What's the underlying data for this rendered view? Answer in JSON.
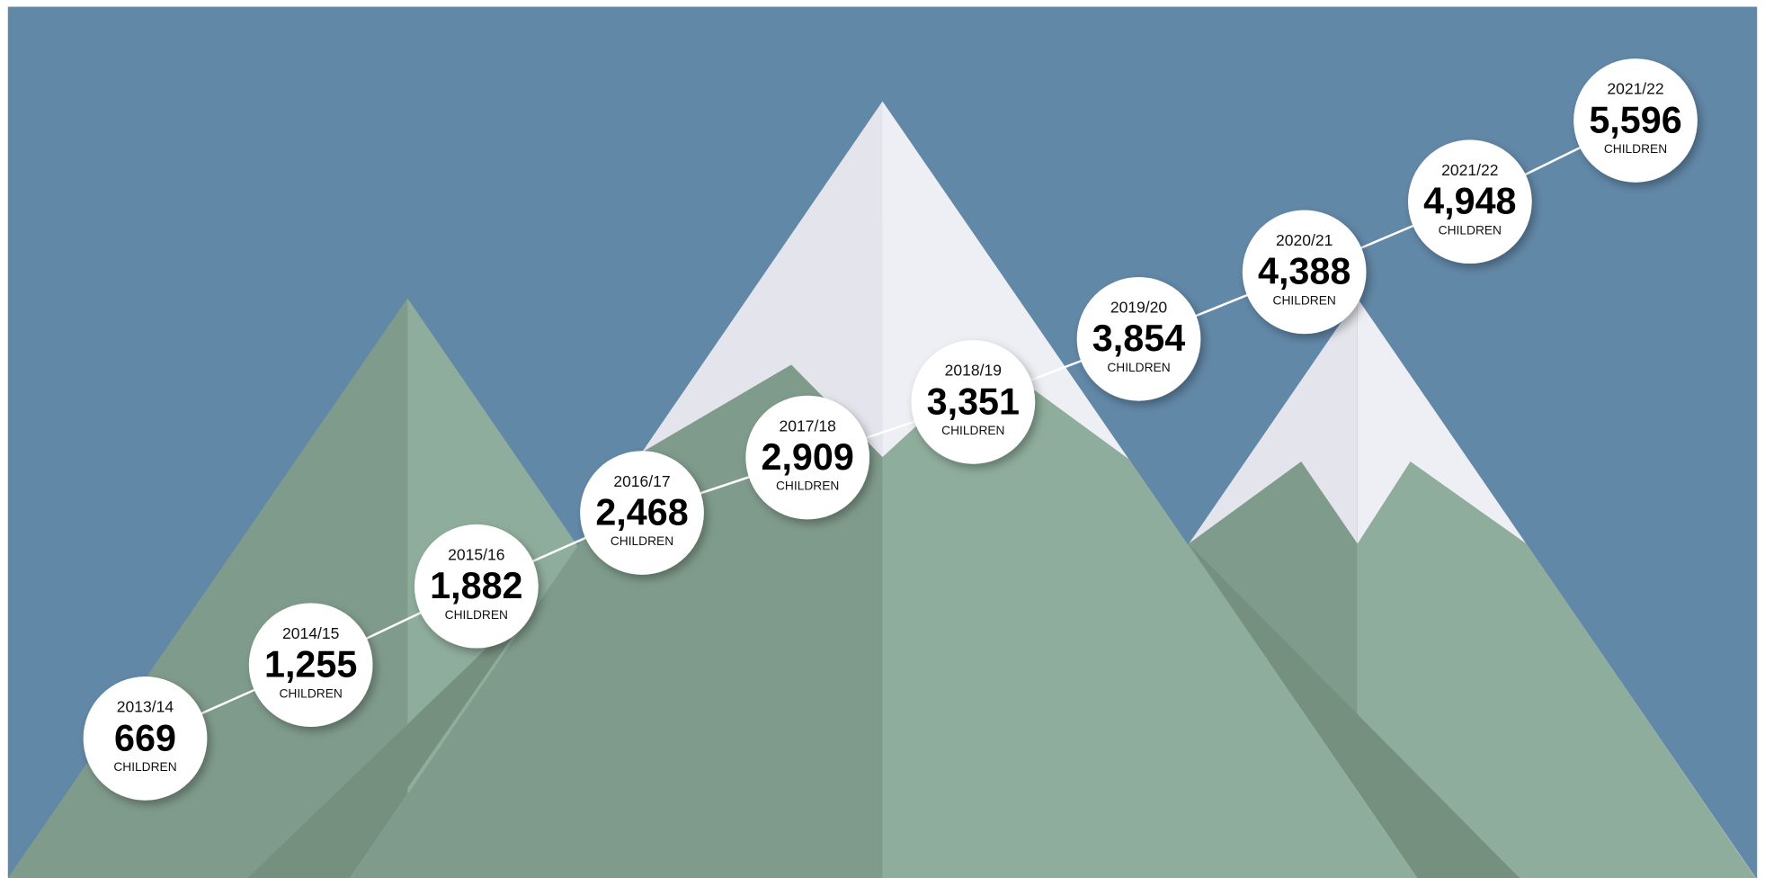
{
  "chart_data": {
    "type": "line",
    "categories": [
      "2013/14",
      "2014/15",
      "2015/16",
      "2016/17",
      "2017/18",
      "2018/19",
      "2019/20",
      "2020/21",
      "2021/22",
      "2021/22"
    ],
    "values": [
      669,
      1255,
      1882,
      2468,
      2909,
      3351,
      3854,
      4388,
      4948,
      5596
    ],
    "value_labels": [
      "669",
      "1,255",
      "1,882",
      "2,468",
      "2,909",
      "3,351",
      "3,854",
      "4,388",
      "4,948",
      "5,596"
    ],
    "unit_label": "CHILDREN",
    "color": "#ffffff"
  }
}
